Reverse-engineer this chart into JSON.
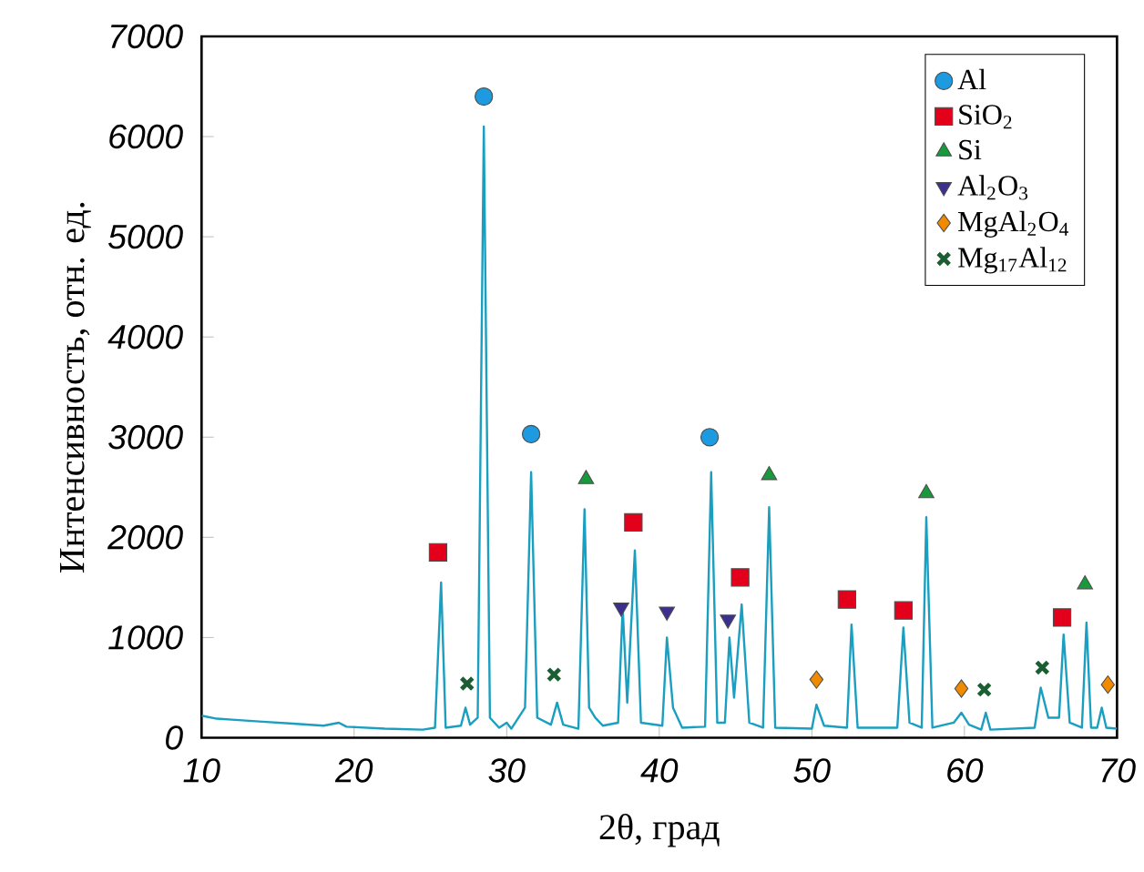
{
  "chart_data": {
    "type": "line",
    "xlabel": "2θ, град",
    "ylabel": "Интенсивность, отн. ед.",
    "xlim": [
      10,
      70
    ],
    "ylim": [
      0,
      7000
    ],
    "xticks": [
      10,
      20,
      30,
      40,
      50,
      60,
      70
    ],
    "yticks": [
      0,
      1000,
      2000,
      3000,
      4000,
      5000,
      6000,
      7000
    ],
    "grid": false,
    "legend": "top right",
    "series": [
      {
        "color": "#1a9fc0",
        "marker": "none",
        "x": [
          10,
          11,
          12,
          14,
          16,
          18,
          19,
          19.5,
          22,
          24.5,
          25.3,
          25.7,
          26.0,
          27.0,
          27.3,
          27.6,
          28.1,
          28.5,
          28.9,
          29.5,
          30,
          30.3,
          31.2,
          31.6,
          32.0,
          32.9,
          33.3,
          33.7,
          34.7,
          35.1,
          35.4,
          35.8,
          36.3,
          37.3,
          37.6,
          37.9,
          38.4,
          38.8,
          40.2,
          40.5,
          40.9,
          41.5,
          43.0,
          43.4,
          43.8,
          44.3,
          44.6,
          44.9,
          45.4,
          45.9,
          46.8,
          47.2,
          47.6,
          50.0,
          50.3,
          50.8,
          52.3,
          52.6,
          53.0,
          55.6,
          56.0,
          56.4,
          57.2,
          57.5,
          57.9,
          59.3,
          59.8,
          60.3,
          61.1,
          61.4,
          61.7,
          64.6,
          65.0,
          65.5,
          66.2,
          66.5,
          66.9,
          67.7,
          68.0,
          68.3,
          68.7,
          69.0,
          69.3,
          70
        ],
        "values": [
          220,
          190,
          180,
          160,
          140,
          120,
          150,
          110,
          90,
          80,
          100,
          1550,
          100,
          120,
          300,
          130,
          200,
          6100,
          200,
          100,
          150,
          90,
          300,
          2650,
          200,
          130,
          350,
          130,
          90,
          2280,
          300,
          200,
          120,
          150,
          1300,
          350,
          1870,
          150,
          120,
          1000,
          300,
          100,
          110,
          2650,
          150,
          150,
          1000,
          400,
          1330,
          150,
          100,
          2300,
          100,
          90,
          330,
          120,
          100,
          1130,
          100,
          100,
          1100,
          150,
          100,
          2200,
          100,
          150,
          250,
          130,
          80,
          250,
          80,
          100,
          500,
          200,
          200,
          1030,
          150,
          100,
          1150,
          100,
          100,
          300,
          100,
          90
        ]
      },
      {
        "type": "scatter",
        "name": "Al",
        "color": "#1e9be0",
        "marker": "circle",
        "x": [
          28.5,
          31.6,
          43.3
        ],
        "values": [
          6400,
          3030,
          3000
        ]
      },
      {
        "type": "scatter",
        "name": "SiO$_{2}$",
        "color": "#e2001a",
        "marker": "square",
        "x": [
          25.5,
          38.3,
          45.3,
          52.3,
          56.0,
          66.4
        ],
        "values": [
          1850,
          2150,
          1600,
          1380,
          1270,
          1200
        ]
      },
      {
        "type": "scatter",
        "name": "Si",
        "color": "#179a3c",
        "marker": "triangle",
        "x": [
          35.2,
          47.2,
          57.5,
          67.9
        ],
        "values": [
          2580,
          2620,
          2440,
          1530
        ]
      },
      {
        "type": "scatter",
        "name": "Al$_{2}$O$_{3}$",
        "color": "#3b2f8f",
        "marker": "triangle_down",
        "x": [
          37.5,
          40.5,
          44.5
        ],
        "values": [
          1300,
          1260,
          1180
        ]
      },
      {
        "type": "scatter",
        "name": "MgAl$_{2}$O$_{4}$",
        "color": "#f08a00",
        "marker": "diamond",
        "x": [
          50.3,
          59.8,
          69.4
        ],
        "values": [
          580,
          490,
          530
        ]
      },
      {
        "type": "scatter",
        "name": "Mg$_{17}$Al$_{12}$",
        "color": "#1b5e33",
        "marker": "cross",
        "x": [
          27.4,
          33.1,
          61.3,
          65.1
        ],
        "values": [
          540,
          630,
          480,
          700
        ]
      }
    ]
  }
}
